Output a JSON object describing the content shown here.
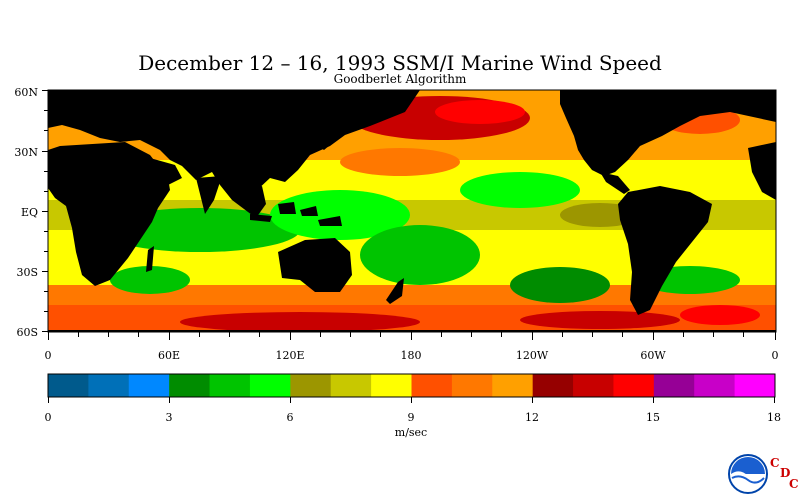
{
  "title": "December 12 – 16, 1993 SSM/I Marine Wind Speed",
  "subtitle": "Goodberlet Algorithm",
  "lat_labels": [
    "60N",
    "30N",
    "EQ",
    "30S",
    "60S"
  ],
  "lon_labels": [
    "0",
    "60E",
    "120E",
    "180",
    "120W",
    "60W",
    "0"
  ],
  "colorbar": {
    "unit": "m/sec",
    "labels": [
      "0",
      "3",
      "6",
      "9",
      "12",
      "15",
      "18"
    ],
    "range": [
      0,
      18
    ],
    "colors": [
      "#005a8c",
      "#0070b8",
      "#0088ff",
      "#008c00",
      "#00c400",
      "#00ff00",
      "#9c9600",
      "#c8c800",
      "#ffff00",
      "#ff5000",
      "#ff7800",
      "#ffa000",
      "#960000",
      "#c80000",
      "#ff0000",
      "#960096",
      "#c800c8",
      "#ff00ff"
    ]
  },
  "logo": {
    "name": "NOAA",
    "cdc_letters": [
      "C",
      "D",
      "C"
    ]
  }
}
